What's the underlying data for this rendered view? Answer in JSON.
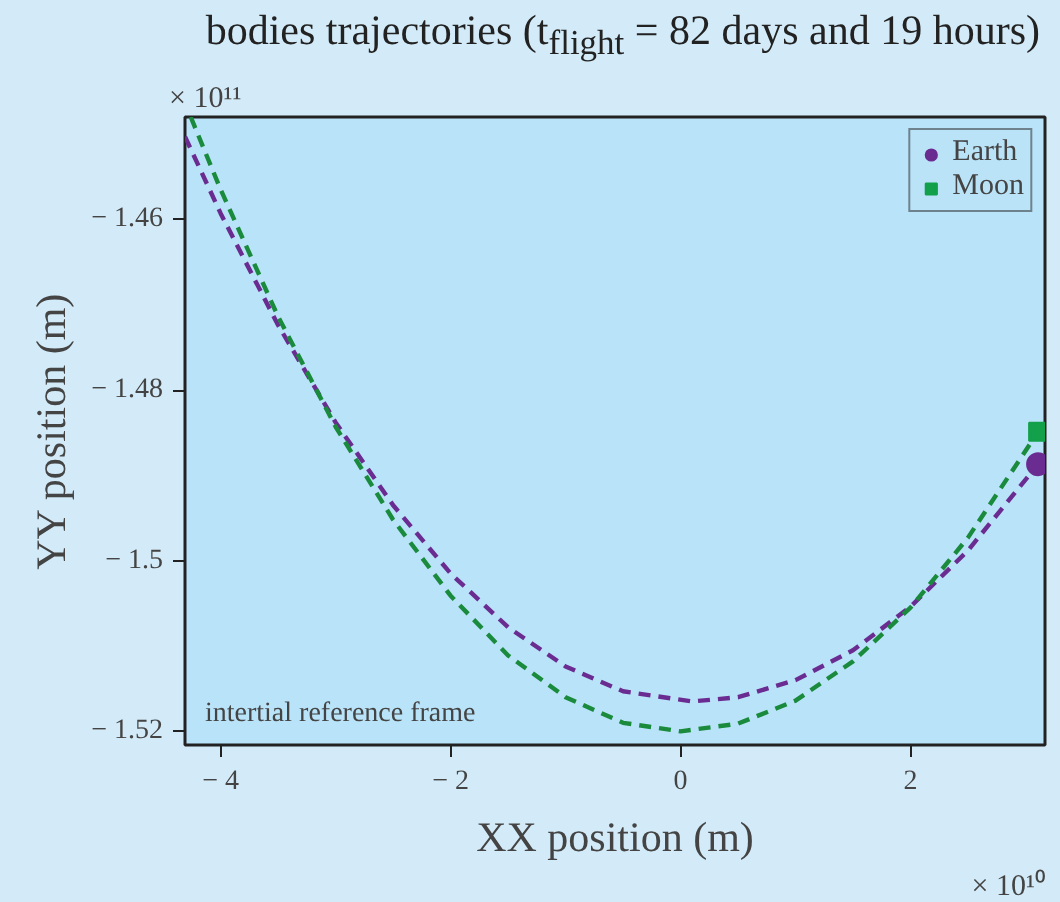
{
  "chart_data": {
    "type": "line",
    "title": "bodies trajectories (t$_{flight}$ = 82 days and 19 hours)",
    "xlabel": "XX position (m)",
    "ylabel": "YY position (m)",
    "annotations": [
      "× 10¹¹",
      "× 10¹⁰",
      "intertial reference frame"
    ],
    "xlim": [
      -4.31,
      3.17
    ],
    "ylim": [
      -1.5216,
      -1.448
    ],
    "xticks": [
      {
        "value": -4,
        "label": "− 4"
      },
      {
        "value": -2,
        "label": "− 2"
      },
      0,
      2
    ],
    "yticks": [
      {
        "value": -1.52,
        "label": "− 1.52"
      },
      {
        "value": -1.5,
        "label": "− 1.5"
      },
      {
        "value": -1.48,
        "label": "− 1.48"
      },
      {
        "value": -1.46,
        "label": "− 1.46"
      }
    ],
    "grid": false,
    "legend": "top right",
    "line_style": "dashed",
    "series": [
      {
        "color": "#6a2c91",
        "x": [
          -4.31,
          -4,
          -3.5,
          -3,
          -2.5,
          -2,
          -1.5,
          -1,
          -0.5,
          0.1,
          0.5,
          1,
          1.5,
          2,
          2.5,
          3.11
        ],
        "values": [
          -1.4503,
          -1.4593,
          -1.4724,
          -1.4838,
          -1.4935,
          -1.5015,
          -1.5078,
          -1.5124,
          -1.5153,
          -1.5165,
          -1.516,
          -1.514,
          -1.5105,
          -1.5054,
          -1.4988,
          -1.4887
        ]
      },
      {
        "color": "#1a8a3c",
        "x": [
          -4.26,
          -4,
          -3.5,
          -3,
          -2.5,
          -2,
          -1.5,
          -1,
          -0.5,
          0,
          0.5,
          1,
          1.5,
          2,
          2.5,
          3.11
        ],
        "values": [
          -1.448,
          -1.4565,
          -1.4714,
          -1.4843,
          -1.4952,
          -1.5041,
          -1.5111,
          -1.516,
          -1.519,
          -1.52,
          -1.5191,
          -1.5164,
          -1.5118,
          -1.5055,
          -1.4973,
          -1.4849
        ]
      },
      {
        "type": "scatter",
        "name": "Earth",
        "color": "#6a2c91",
        "marker": "circle",
        "x": [
          3.11
        ],
        "values": [
          -1.4887
        ]
      },
      {
        "type": "scatter",
        "name": "Moon",
        "color": "#12a04a",
        "marker": "square",
        "x": [
          3.11
        ],
        "values": [
          -1.4849
        ]
      }
    ]
  }
}
